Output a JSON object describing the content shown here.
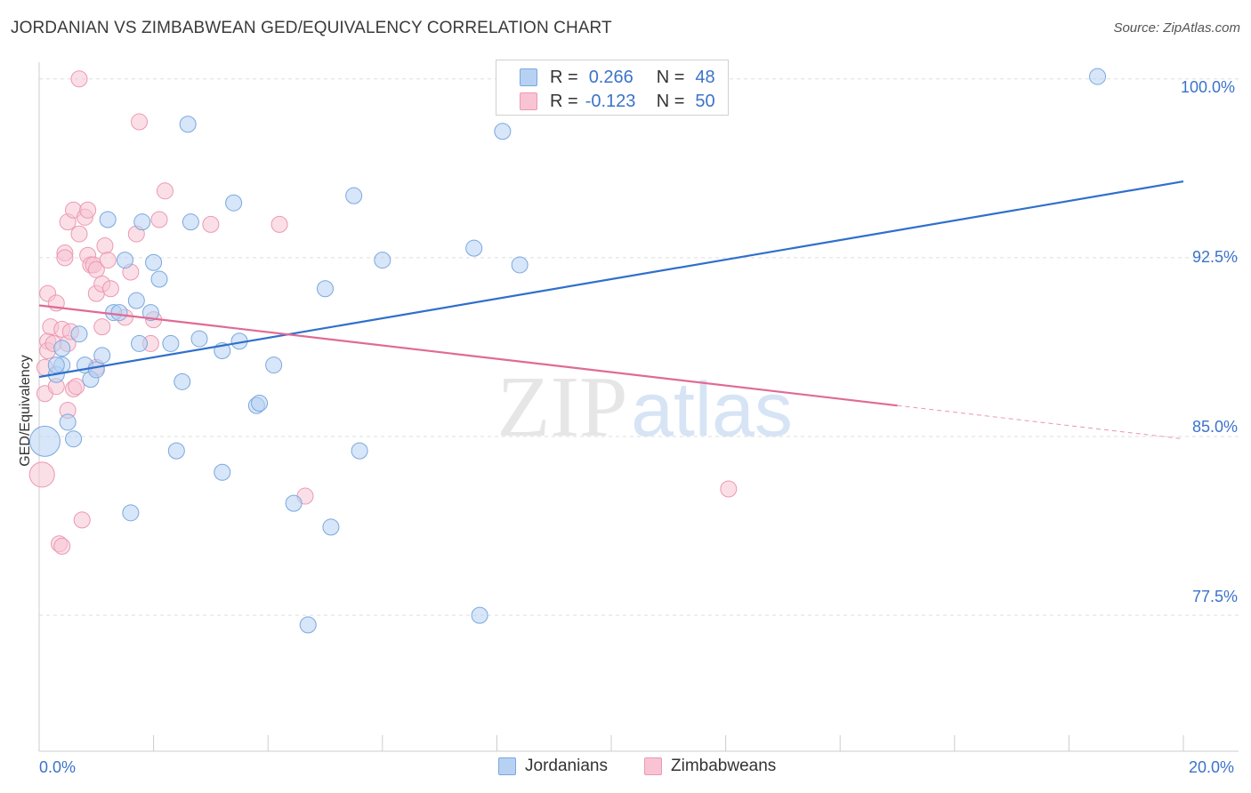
{
  "title": "JORDANIAN VS ZIMBABWEAN GED/EQUIVALENCY CORRELATION CHART",
  "source": "Source: ZipAtlas.com",
  "watermark": {
    "zip": "ZIP",
    "atlas": "atlas"
  },
  "legend": {
    "r_label": "R =",
    "n_label": "N =",
    "rows": [
      {
        "r": "0.266",
        "n": "48"
      },
      {
        "r": "-0.123",
        "n": "50"
      }
    ]
  },
  "colors": {
    "jordanians_fill": "#b7d1f3",
    "jordanians_stroke": "#7aa7df",
    "jordanians_line": "#2f6fcc",
    "zimbabweans_fill": "#f8c4d4",
    "zimbabweans_stroke": "#ec98b3",
    "zimbabweans_line": "#e06a95",
    "axis_text": "#3b73c9",
    "grid": "#dddddd"
  },
  "chart_data": {
    "type": "scatter",
    "title": "JORDANIAN VS ZIMBABWEAN GED/EQUIVALENCY CORRELATION CHART",
    "xlabel": "",
    "ylabel": "GED/Equivalency",
    "xlim": [
      0,
      20
    ],
    "ylim": [
      71.8,
      100.7
    ],
    "x_tick_labels": [
      "0.0%",
      "20.0%"
    ],
    "y_ticks": [
      77.5,
      85.0,
      92.5,
      100.0
    ],
    "y_tick_labels": [
      "77.5%",
      "85.0%",
      "92.5%",
      "100.0%"
    ],
    "grid": true,
    "legend_placement": "top-center",
    "series": [
      {
        "name": "Jordanians",
        "r": 0.266,
        "n": 48,
        "trend": {
          "x": [
            0,
            20
          ],
          "y": [
            87.5,
            95.7
          ]
        },
        "points": [
          [
            0.1,
            84.8
          ],
          [
            0.3,
            87.6
          ],
          [
            0.4,
            88.0
          ],
          [
            0.4,
            88.7
          ],
          [
            0.5,
            85.6
          ],
          [
            0.6,
            84.9
          ],
          [
            0.7,
            89.3
          ],
          [
            0.8,
            88.0
          ],
          [
            0.9,
            87.4
          ],
          [
            1.0,
            87.8
          ],
          [
            1.1,
            88.4
          ],
          [
            1.2,
            94.1
          ],
          [
            1.3,
            90.2
          ],
          [
            1.4,
            90.2
          ],
          [
            1.5,
            92.4
          ],
          [
            1.6,
            81.8
          ],
          [
            1.7,
            90.7
          ],
          [
            1.75,
            88.9
          ],
          [
            1.8,
            94.0
          ],
          [
            1.95,
            90.2
          ],
          [
            2.0,
            92.3
          ],
          [
            2.1,
            91.6
          ],
          [
            2.3,
            88.9
          ],
          [
            2.4,
            84.4
          ],
          [
            2.5,
            87.3
          ],
          [
            2.6,
            98.1
          ],
          [
            2.65,
            94.0
          ],
          [
            2.8,
            89.1
          ],
          [
            3.2,
            83.5
          ],
          [
            3.2,
            88.6
          ],
          [
            3.4,
            94.8
          ],
          [
            3.5,
            89.0
          ],
          [
            3.8,
            86.3
          ],
          [
            3.85,
            86.4
          ],
          [
            4.1,
            88.0
          ],
          [
            4.45,
            82.2
          ],
          [
            4.7,
            77.1
          ],
          [
            5.0,
            91.2
          ],
          [
            5.1,
            81.2
          ],
          [
            5.5,
            95.1
          ],
          [
            5.6,
            84.4
          ],
          [
            6.0,
            92.4
          ],
          [
            7.6,
            92.9
          ],
          [
            7.7,
            77.5
          ],
          [
            8.1,
            97.8
          ],
          [
            8.4,
            92.2
          ],
          [
            18.5,
            100.1
          ],
          [
            0.3,
            88.0
          ]
        ]
      },
      {
        "name": "Zimbabweans",
        "r": -0.123,
        "n": 50,
        "trend": {
          "x": [
            0,
            15
          ],
          "y": [
            90.5,
            86.3
          ]
        },
        "trend_dashed": {
          "x": [
            15,
            20
          ],
          "y": [
            86.3,
            84.9
          ]
        },
        "points": [
          [
            0.05,
            83.4
          ],
          [
            0.1,
            86.8
          ],
          [
            0.1,
            87.9
          ],
          [
            0.15,
            89.0
          ],
          [
            0.15,
            88.6
          ],
          [
            0.15,
            91.0
          ],
          [
            0.2,
            89.6
          ],
          [
            0.25,
            88.9
          ],
          [
            0.3,
            90.6
          ],
          [
            0.3,
            87.1
          ],
          [
            0.35,
            80.5
          ],
          [
            0.4,
            80.4
          ],
          [
            0.4,
            89.5
          ],
          [
            0.45,
            92.7
          ],
          [
            0.45,
            92.5
          ],
          [
            0.5,
            94.0
          ],
          [
            0.5,
            86.1
          ],
          [
            0.5,
            88.9
          ],
          [
            0.55,
            89.4
          ],
          [
            0.6,
            94.5
          ],
          [
            0.6,
            87.0
          ],
          [
            0.65,
            87.1
          ],
          [
            0.7,
            93.5
          ],
          [
            0.75,
            81.5
          ],
          [
            0.7,
            100.0
          ],
          [
            0.8,
            94.2
          ],
          [
            0.85,
            94.5
          ],
          [
            0.85,
            92.6
          ],
          [
            0.9,
            92.2
          ],
          [
            0.95,
            92.2
          ],
          [
            1.0,
            92.0
          ],
          [
            1.0,
            91.0
          ],
          [
            1.0,
            87.9
          ],
          [
            1.1,
            89.6
          ],
          [
            1.1,
            91.4
          ],
          [
            1.15,
            93.0
          ],
          [
            1.2,
            92.4
          ],
          [
            1.25,
            91.2
          ],
          [
            1.5,
            90.0
          ],
          [
            1.6,
            91.9
          ],
          [
            1.7,
            93.5
          ],
          [
            1.75,
            98.2
          ],
          [
            1.95,
            88.9
          ],
          [
            2.0,
            89.9
          ],
          [
            2.1,
            94.1
          ],
          [
            2.2,
            95.3
          ],
          [
            3.0,
            93.9
          ],
          [
            4.2,
            93.9
          ],
          [
            4.65,
            82.5
          ],
          [
            12.05,
            82.8
          ]
        ]
      }
    ]
  },
  "bottom_legend": [
    "Jordanians",
    "Zimbabweans"
  ]
}
